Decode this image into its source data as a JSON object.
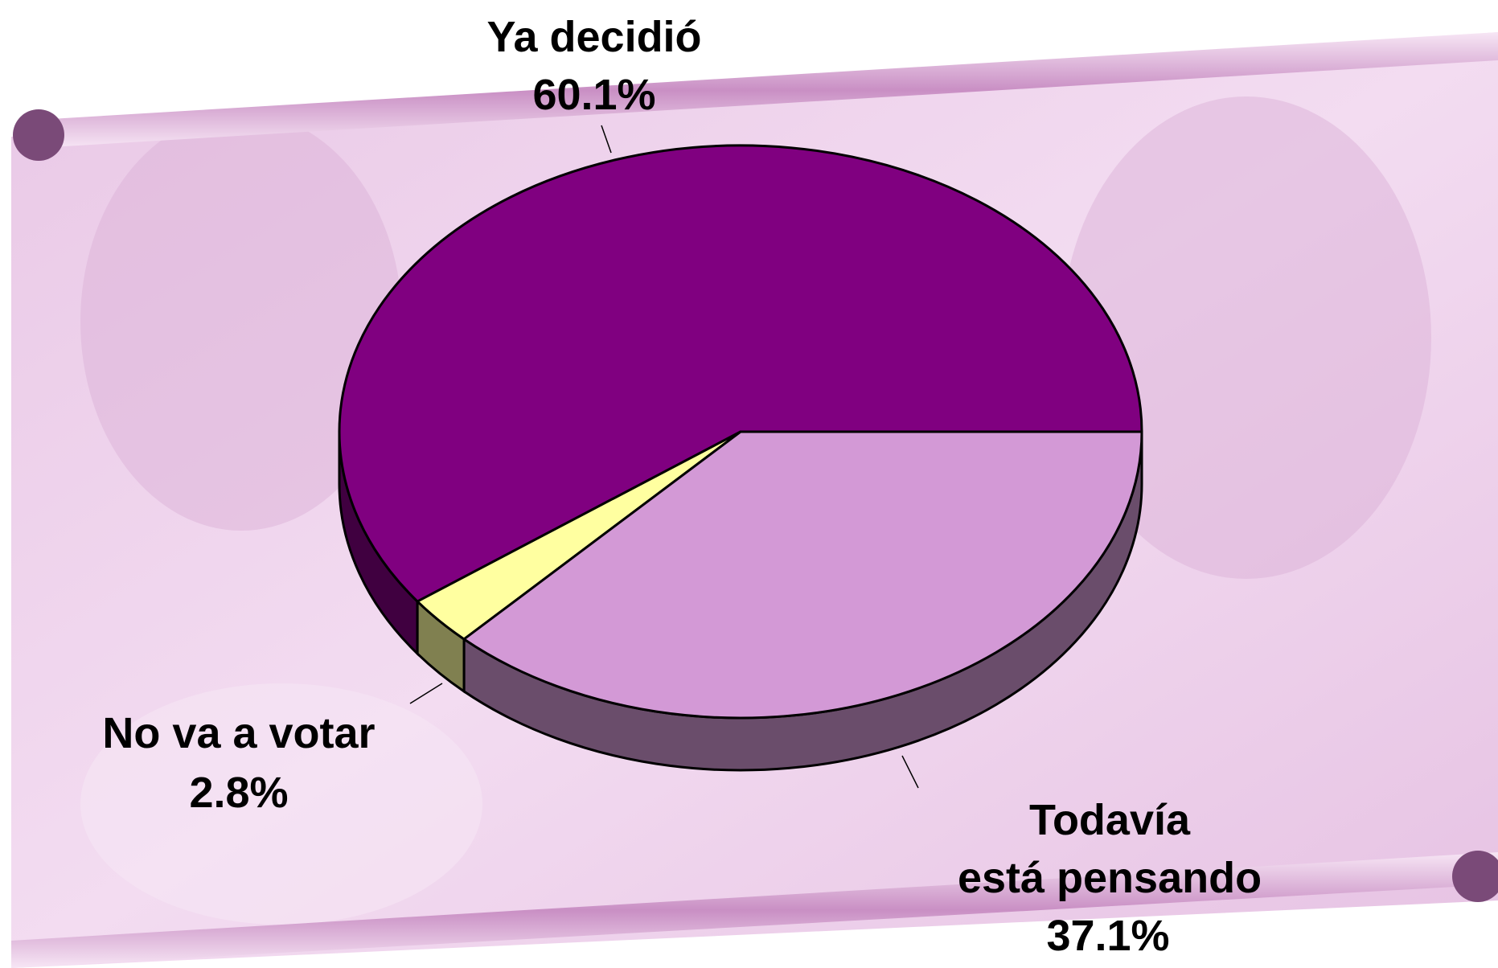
{
  "chart_data": {
    "type": "pie",
    "categories": [
      "Ya decidió",
      "No va a votar",
      "Todavía\nestá pensando"
    ],
    "values": [
      60.1,
      2.8,
      37.1
    ],
    "value_labels": [
      "60.1%",
      "2.8%",
      "37.1%"
    ],
    "colors": [
      "#800080",
      "#ffffa0",
      "#d399d6"
    ]
  }
}
